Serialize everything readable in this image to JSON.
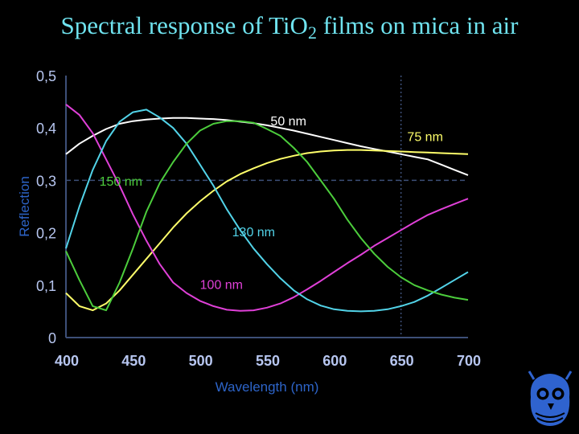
{
  "slide": {
    "title_prefix": "Spectral response of TiO",
    "title_subscript": "2",
    "title_suffix": " films on mica in air"
  },
  "colors": {
    "background": "#000000",
    "title": "#6fe3ef",
    "axis": "#3d4f78",
    "tick_text": "#b7c6f0",
    "axis_label": "#2d64c8",
    "series_50": "#ffffff",
    "series_75": "#ffff6a",
    "series_100": "#e040d8",
    "series_130": "#52d3e8",
    "series_150": "#4ccd3c"
  },
  "chart_data": {
    "type": "line",
    "title": "Spectral response of TiO2 films on mica in air",
    "xlabel": "Wavelength (nm)",
    "ylabel": "Reflection",
    "xlim": [
      400,
      700
    ],
    "ylim": [
      0,
      0.5
    ],
    "x_ticks": [
      "400",
      "450",
      "500",
      "550",
      "600",
      "650",
      "700"
    ],
    "y_ticks": [
      "0",
      "0,1",
      "0,2",
      "0,3",
      "0,4",
      "0,5"
    ],
    "reference_lines": {
      "x": 650,
      "y": 0.3,
      "style": "dotted"
    },
    "x": [
      400,
      410,
      420,
      430,
      440,
      450,
      460,
      470,
      480,
      490,
      500,
      510,
      520,
      530,
      540,
      550,
      560,
      570,
      580,
      590,
      600,
      610,
      620,
      630,
      640,
      650,
      660,
      670,
      680,
      690,
      700
    ],
    "series": [
      {
        "name": "50 nm",
        "color_key": "series_50",
        "values": [
          0.35,
          0.37,
          0.385,
          0.398,
          0.408,
          0.413,
          0.416,
          0.418,
          0.419,
          0.419,
          0.418,
          0.417,
          0.415,
          0.412,
          0.409,
          0.405,
          0.4,
          0.395,
          0.389,
          0.383,
          0.377,
          0.371,
          0.365,
          0.36,
          0.355,
          0.35,
          0.345,
          0.34,
          0.33,
          0.32,
          0.31
        ]
      },
      {
        "name": "75 nm",
        "color_key": "series_75",
        "values": [
          0.085,
          0.06,
          0.052,
          0.065,
          0.09,
          0.12,
          0.15,
          0.18,
          0.21,
          0.237,
          0.26,
          0.28,
          0.298,
          0.312,
          0.323,
          0.333,
          0.341,
          0.347,
          0.352,
          0.355,
          0.357,
          0.358,
          0.358,
          0.357,
          0.356,
          0.355,
          0.354,
          0.353,
          0.352,
          0.351,
          0.35
        ]
      },
      {
        "name": "100 nm",
        "color_key": "series_100",
        "values": [
          0.445,
          0.425,
          0.39,
          0.34,
          0.29,
          0.235,
          0.185,
          0.14,
          0.105,
          0.085,
          0.07,
          0.06,
          0.053,
          0.051,
          0.052,
          0.057,
          0.065,
          0.077,
          0.092,
          0.108,
          0.125,
          0.142,
          0.158,
          0.175,
          0.19,
          0.205,
          0.22,
          0.234,
          0.245,
          0.255,
          0.265
        ]
      },
      {
        "name": "130 nm",
        "color_key": "series_130",
        "values": [
          0.17,
          0.25,
          0.32,
          0.375,
          0.412,
          0.43,
          0.435,
          0.42,
          0.4,
          0.37,
          0.33,
          0.29,
          0.245,
          0.205,
          0.17,
          0.14,
          0.113,
          0.09,
          0.073,
          0.061,
          0.054,
          0.051,
          0.05,
          0.051,
          0.054,
          0.06,
          0.068,
          0.08,
          0.095,
          0.11,
          0.125
        ]
      },
      {
        "name": "150 nm",
        "color_key": "series_150",
        "values": [
          0.165,
          0.11,
          0.06,
          0.052,
          0.105,
          0.17,
          0.24,
          0.295,
          0.335,
          0.37,
          0.395,
          0.408,
          0.413,
          0.413,
          0.41,
          0.398,
          0.385,
          0.362,
          0.335,
          0.3,
          0.265,
          0.225,
          0.19,
          0.16,
          0.135,
          0.115,
          0.1,
          0.09,
          0.082,
          0.076,
          0.072
        ]
      }
    ],
    "annotations": [
      {
        "text": "50 nm",
        "series": "50 nm",
        "x": 566,
        "y": 0.405
      },
      {
        "text": "75 nm",
        "series": "75 nm",
        "x": 668,
        "y": 0.375
      },
      {
        "text": "100 nm",
        "series": "100 nm",
        "x": 516,
        "y": 0.093
      },
      {
        "text": "130 nm",
        "series": "130 nm",
        "x": 540,
        "y": 0.193
      },
      {
        "text": "150 nm",
        "series": "150 nm",
        "x": 441,
        "y": 0.29
      }
    ]
  }
}
